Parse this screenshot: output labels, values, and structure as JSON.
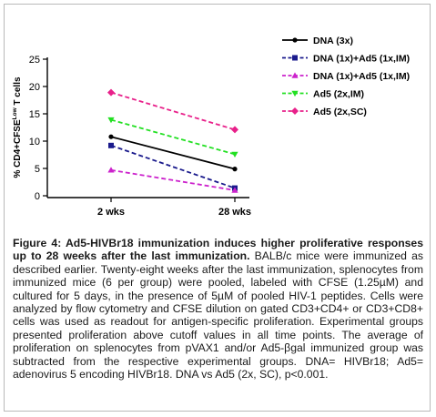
{
  "chart_data": {
    "type": "line",
    "categories": [
      "2 wks",
      "28 wks"
    ],
    "ylabel_parts": {
      "prefix": "% CD4+CFSE",
      "superscript": "Low",
      "suffix": " T cells"
    },
    "yticks": [
      0,
      5,
      10,
      15,
      20,
      25
    ],
    "ylim": [
      0,
      25
    ],
    "grid": false,
    "legend_position": "top-right",
    "series": [
      {
        "name": "DNA (3x)",
        "values": [
          10.8,
          4.9
        ],
        "color": "#000000",
        "dash": "solid",
        "marker": "circle"
      },
      {
        "name": "DNA (1x)+Ad5 (1x,IM)",
        "values": [
          9.2,
          1.4
        ],
        "color": "#1a1a8c",
        "dash": "dashed",
        "marker": "square"
      },
      {
        "name": "DNA (1x)+Ad5 (1x,IM)",
        "values": [
          4.7,
          1.0
        ],
        "color": "#cc22cc",
        "dash": "dashed",
        "marker": "triangle-up"
      },
      {
        "name": "Ad5 (2x,IM)",
        "values": [
          13.9,
          7.6
        ],
        "color": "#22e022",
        "dash": "dashed",
        "marker": "triangle-down"
      },
      {
        "name": "Ad5 (2x,SC)",
        "values": [
          18.9,
          12.1
        ],
        "color": "#e8208a",
        "dash": "dashed",
        "marker": "diamond"
      }
    ]
  },
  "caption": {
    "title": "Figure 4: Ad5-HIVBr18 immunization induces higher proliferative responses up to 28 weeks after the last immunization.",
    "body": "BALB/c mice were immunized as described earlier. Twenty-eight weeks after the last immunization, splenocytes from immunized mice (6 per group) were pooled, labeled with CFSE (1.25µM) and cultured for 5 days, in the presence of 5µM of pooled HIV-1 peptides. Cells were analyzed by flow cytometry and CFSE dilution on gated CD3+CD4+ or CD3+CD8+ cells was used as readout for antigen-specific proliferation. Experimental groups presented proliferation above cutoff values in all time points. The average of proliferation on splenocytes from pVAX1 and/or Ad5-βgal immunized group was subtracted from the respective experimental groups. DNA= HIVBr18; Ad5= adenovirus 5 encoding HIVBr18. DNA vs Ad5 (2x, SC), p<0.001."
  }
}
